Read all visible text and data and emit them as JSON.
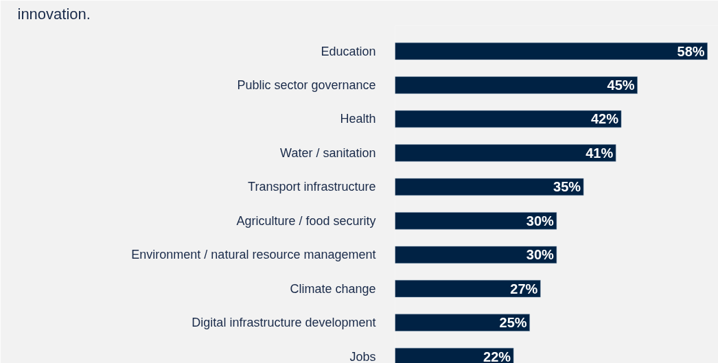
{
  "chart_data": {
    "type": "bar",
    "orientation": "horizontal",
    "title": "innovation.",
    "categories": [
      "Education",
      "Public sector governance",
      "Health",
      "Water / sanitation",
      "Transport infrastructure",
      "Agriculture / food security",
      "Environment / natural resource management",
      "Climate change",
      "Digital infrastructure development",
      "Jobs"
    ],
    "values": [
      58,
      45,
      42,
      41,
      35,
      30,
      30,
      27,
      25,
      22
    ],
    "value_labels": [
      "58%",
      "45%",
      "42%",
      "41%",
      "35%",
      "30%",
      "30%",
      "27%",
      "25%",
      "22%"
    ],
    "color": "#002244",
    "grid": false
  }
}
